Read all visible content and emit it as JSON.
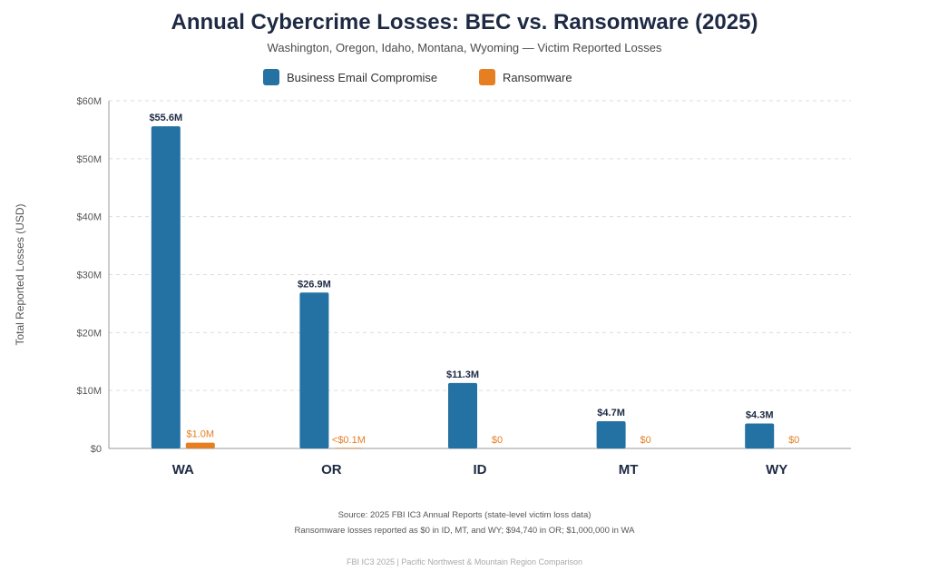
{
  "colors": {
    "bec": "#2471a3",
    "ransomware": "#e67e22",
    "grid": "#dddddd",
    "axis": "#999999"
  },
  "chart_data": {
    "type": "bar",
    "title": "Annual Cybercrime Losses: BEC vs. Ransomware (2025)",
    "subtitle": "Washington, Oregon, Idaho, Montana, Wyoming — Victim Reported Losses",
    "ylabel": "Total Reported Losses (USD)",
    "xlabel": "",
    "ylim": [
      0,
      60
    ],
    "yticks": [
      0,
      10,
      20,
      30,
      40,
      50,
      60
    ],
    "ytick_labels": [
      "$0",
      "$10M",
      "$20M",
      "$30M",
      "$40M",
      "$50M",
      "$60M"
    ],
    "categories": [
      "WA",
      "OR",
      "ID",
      "MT",
      "WY"
    ],
    "grid": true,
    "legend_position": "top-center",
    "series": [
      {
        "name": "Business Email Compromise",
        "values": [
          55.6,
          26.9,
          11.3,
          4.7,
          4.3
        ],
        "labels": [
          "$55.6M",
          "$26.9M",
          "$11.3M",
          "$4.7M",
          "$4.3M"
        ]
      },
      {
        "name": "Ransomware",
        "values": [
          1.0,
          0.09474,
          0,
          0,
          0
        ],
        "labels": [
          "$1.0M",
          "<$0.1M",
          "$0",
          "$0",
          "$0"
        ]
      }
    ]
  },
  "notes": {
    "source": "Source: 2025 FBI IC3 Annual Reports (state-level victim loss data)",
    "ransomware_note": "Ransomware losses reported as $0 in ID, MT, and WY; $94,740 in OR; $1,000,000 in WA",
    "footer": "FBI IC3 2025 | Pacific Northwest & Mountain Region Comparison"
  }
}
